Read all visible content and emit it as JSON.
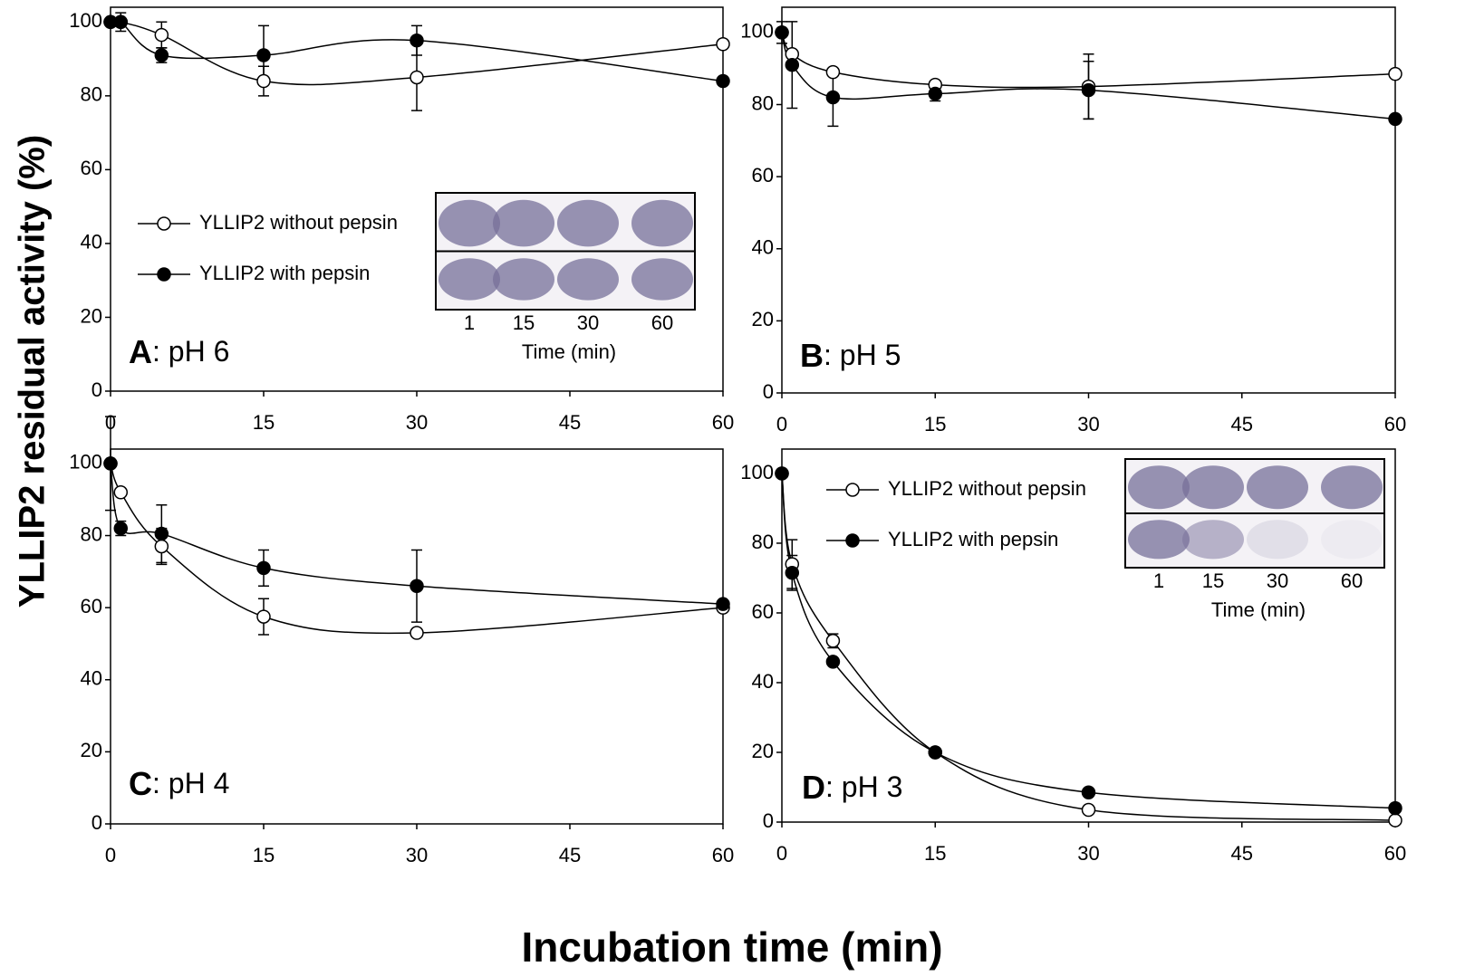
{
  "shared_axes": {
    "ylabel": "YLLIP2 residual activity (%)",
    "xlabel": "Incubation time (min)"
  },
  "chart_data": [
    {
      "type": "line",
      "panel_letter": "A",
      "panel_condition": ": pH 6",
      "x": [
        0,
        1,
        5,
        15,
        30,
        60
      ],
      "xlim": [
        0,
        60
      ],
      "xticks": [
        0,
        15,
        30,
        45,
        60
      ],
      "ylim": [
        0,
        104
      ],
      "yticks": [
        0,
        20,
        40,
        60,
        80,
        100
      ],
      "legend": "center-left",
      "series": [
        {
          "name": "YLLIP2 without pepsin",
          "marker": "open",
          "color": "#000000",
          "values": [
            100,
            100,
            96.5,
            84,
            85,
            94
          ],
          "error": [
            null,
            null,
            3.5,
            4,
            9,
            null
          ]
        },
        {
          "name": "YLLIP2 with pepsin",
          "marker": "filled",
          "color": "#000000",
          "values": [
            100,
            100,
            91,
            91,
            95,
            84
          ],
          "error": [
            null,
            2.5,
            2,
            8,
            4,
            null
          ]
        }
      ],
      "inset": {
        "lanes": [
          "1",
          "15",
          "30",
          "60"
        ],
        "xlabel": "Time (min)"
      }
    },
    {
      "type": "line",
      "panel_letter": "B",
      "panel_condition": ": pH 5",
      "x": [
        0,
        1,
        5,
        15,
        30,
        60
      ],
      "xlim": [
        0,
        60
      ],
      "xticks": [
        0,
        15,
        30,
        45,
        60
      ],
      "ylim": [
        0,
        107
      ],
      "yticks": [
        0,
        20,
        40,
        60,
        80,
        100
      ],
      "series": [
        {
          "marker": "open",
          "color": "#000000",
          "values": [
            100,
            94,
            89,
            85.5,
            85,
            88.5
          ],
          "error": [
            3,
            null,
            null,
            null,
            9,
            null
          ]
        },
        {
          "marker": "filled",
          "color": "#000000",
          "values": [
            100,
            91,
            82,
            83,
            84,
            76
          ],
          "error": [
            null,
            12,
            8,
            2,
            8,
            null
          ]
        }
      ]
    },
    {
      "type": "line",
      "panel_letter": "C",
      "panel_condition": ": pH 4",
      "x": [
        0,
        1,
        5,
        15,
        30,
        60
      ],
      "xlim": [
        0,
        60
      ],
      "xticks": [
        0,
        15,
        30,
        45,
        60
      ],
      "ylim": [
        0,
        104
      ],
      "yticks": [
        0,
        20,
        40,
        60,
        80,
        100
      ],
      "series": [
        {
          "marker": "open",
          "color": "#000000",
          "values": [
            100,
            92,
            77,
            57.5,
            53,
            60
          ],
          "error": [
            13,
            null,
            5,
            5,
            null,
            null
          ]
        },
        {
          "marker": "filled",
          "color": "#000000",
          "values": [
            100,
            82,
            80.5,
            71,
            66,
            61
          ],
          "error": [
            null,
            2,
            8,
            5,
            10,
            null
          ]
        }
      ]
    },
    {
      "type": "line",
      "panel_letter": "D",
      "panel_condition": ": pH 3",
      "x": [
        0,
        1,
        5,
        15,
        30,
        60
      ],
      "xlim": [
        0,
        60
      ],
      "xticks": [
        0,
        15,
        30,
        45,
        60
      ],
      "ylim": [
        0,
        107
      ],
      "yticks": [
        0,
        20,
        40,
        60,
        80,
        100
      ],
      "legend": "upper-left",
      "series": [
        {
          "name": "YLLIP2 without pepsin",
          "marker": "open",
          "color": "#000000",
          "values": [
            100,
            74,
            52,
            20,
            3.5,
            0.5
          ],
          "error": [
            null,
            7,
            2,
            null,
            null,
            null
          ]
        },
        {
          "name": "YLLIP2 with pepsin",
          "marker": "filled",
          "color": "#000000",
          "values": [
            100,
            71.5,
            46,
            20,
            8.5,
            4
          ],
          "error": [
            null,
            5,
            null,
            null,
            null,
            null
          ]
        }
      ],
      "inset": {
        "lanes": [
          "1",
          "15",
          "30",
          "60"
        ],
        "xlabel": "Time (min)"
      }
    }
  ]
}
